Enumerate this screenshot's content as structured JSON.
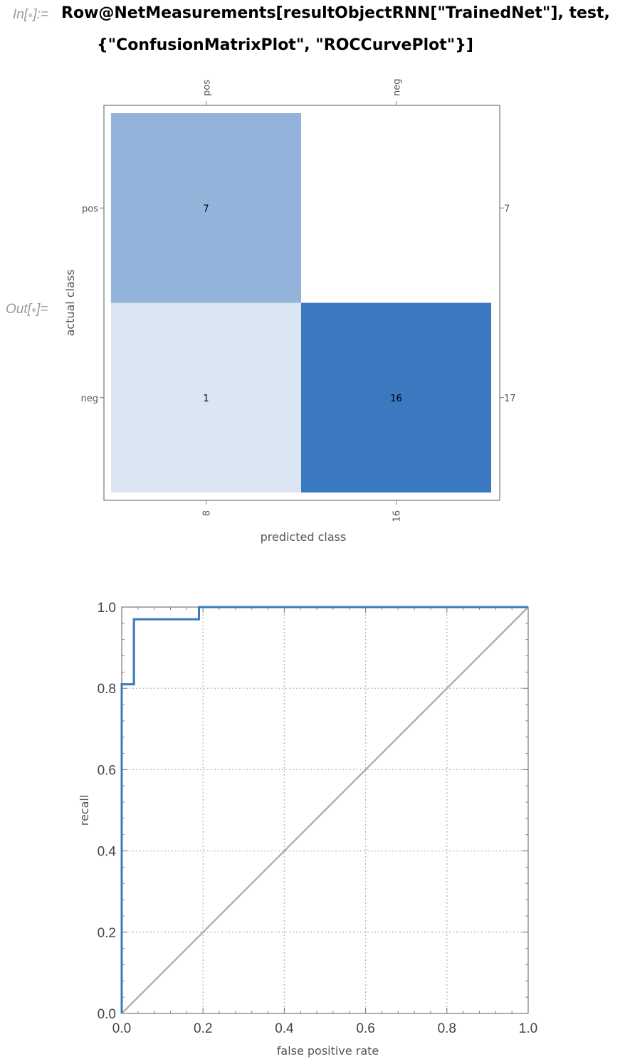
{
  "notebook": {
    "in_label": "In[",
    "in_label_end": "]:=",
    "out_label": "Out[",
    "out_label_end": "]=",
    "code_line1": "Row@NetMeasurements[resultObjectRNN[\"TrainedNet\"], test,",
    "code_line2": "{\"ConfusionMatrixPlot\", \"ROCCurvePlot\"}]"
  },
  "colors": {
    "cell_light": "#dbe5f3",
    "cell_mid": "#93b3db",
    "cell_dark": "#3a78bf",
    "roc_line": "#3a78bf",
    "diag_line": "#b0b0b0",
    "frame": "#777777",
    "grid": "#b8b8b8"
  },
  "chart_data": [
    {
      "type": "heatmap",
      "title": "",
      "xlabel": "predicted class",
      "ylabel": "actual class",
      "x_categories": [
        "pos",
        "neg"
      ],
      "y_categories": [
        "pos",
        "neg"
      ],
      "values": [
        [
          7,
          0
        ],
        [
          1,
          16
        ]
      ],
      "cell_labels": [
        [
          "7",
          ""
        ],
        [
          "1",
          "16"
        ]
      ],
      "column_totals": [
        "8",
        "16"
      ],
      "row_totals": [
        "7",
        "17"
      ]
    },
    {
      "type": "line",
      "title": "",
      "xlabel": "false positive rate",
      "ylabel": "recall",
      "xlim": [
        0,
        1
      ],
      "ylim": [
        0,
        1
      ],
      "xticks": [
        "0.0",
        "0.2",
        "0.4",
        "0.6",
        "0.8",
        "1.0"
      ],
      "yticks": [
        "0.0",
        "0.2",
        "0.4",
        "0.6",
        "0.8",
        "1.0"
      ],
      "grid": true,
      "series": [
        {
          "x": [
            0,
            0,
            0.03,
            0.03,
            0.19,
            0.19,
            1.0
          ],
          "y": [
            0,
            0.81,
            0.81,
            0.97,
            0.97,
            1.0,
            1.0
          ]
        },
        {
          "x": [
            0,
            1
          ],
          "y": [
            0,
            1
          ]
        }
      ]
    }
  ]
}
